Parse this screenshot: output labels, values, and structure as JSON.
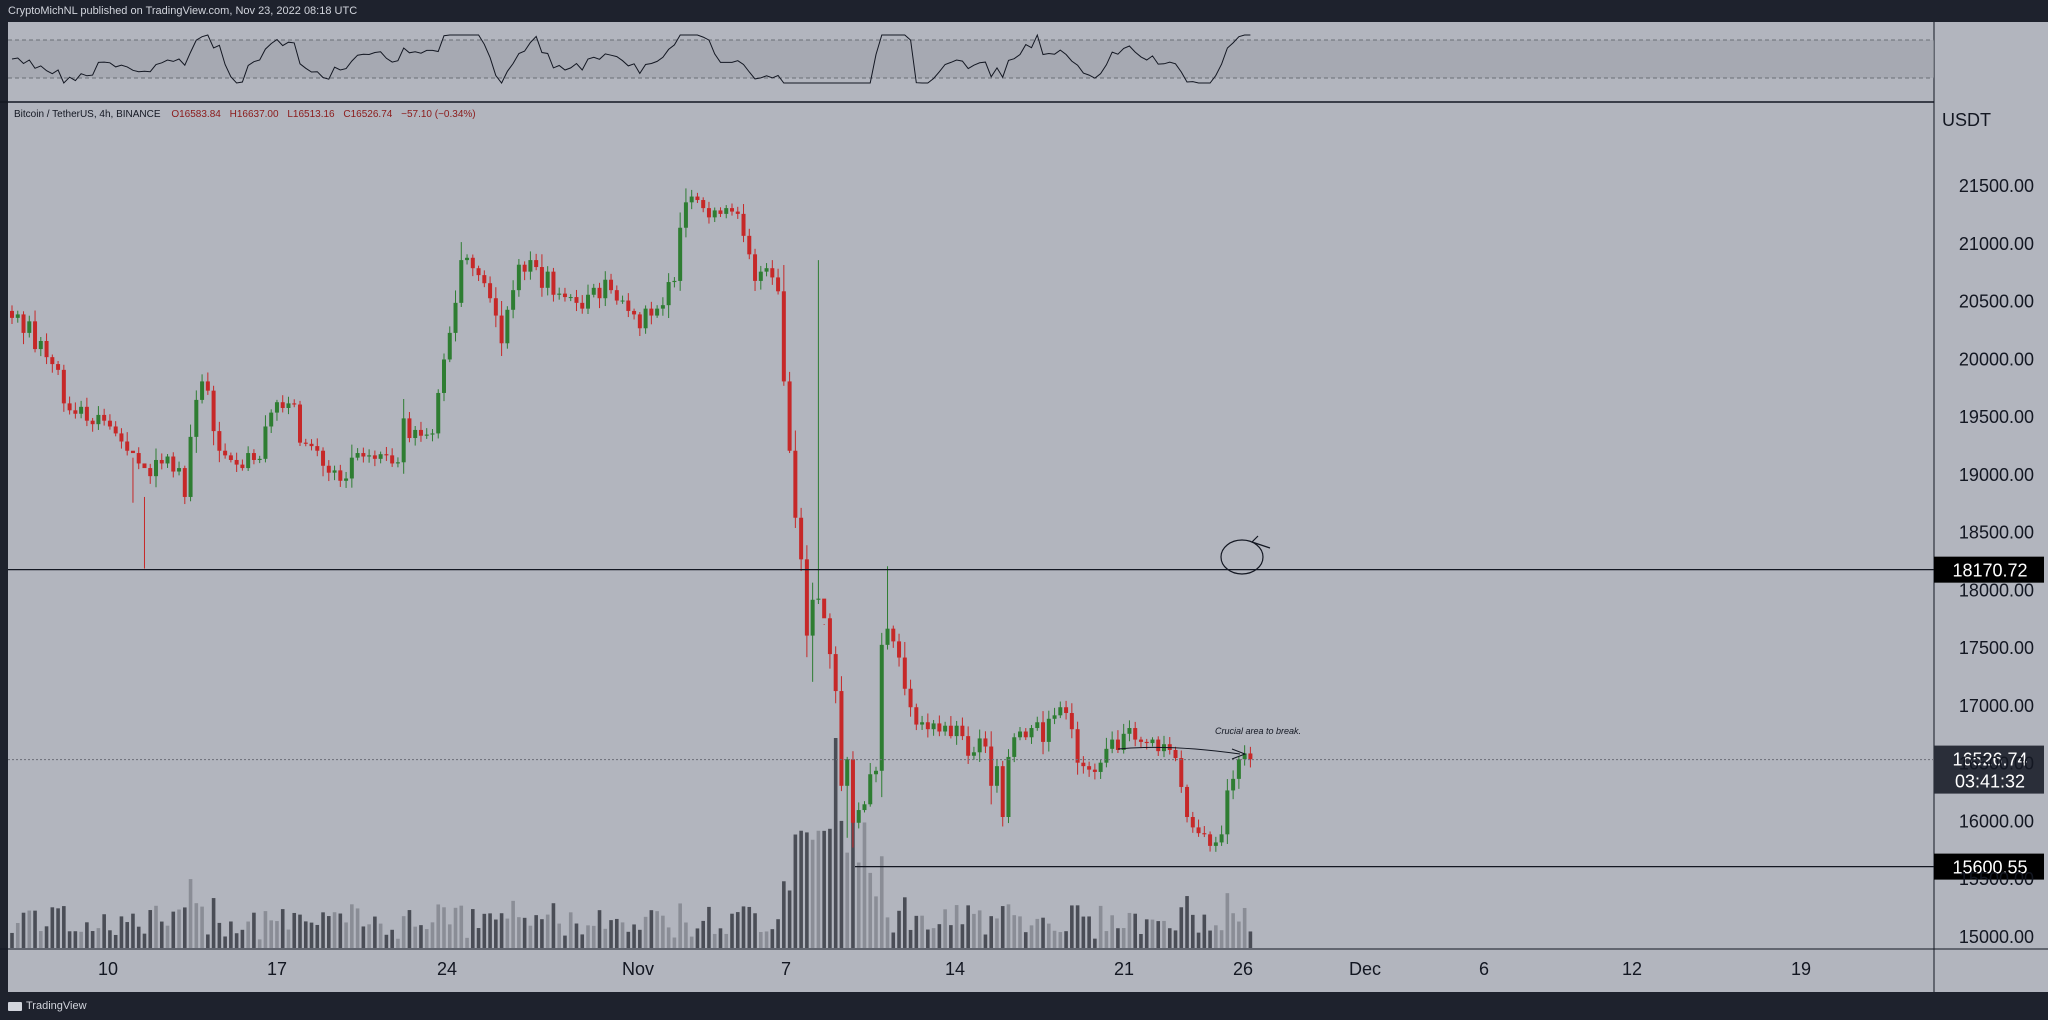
{
  "header": {
    "publish_text": "CryptoMichNL published on TradingView.com, Nov 23, 2022 08:18 UTC"
  },
  "footer": {
    "brand": "TradingView"
  },
  "colors": {
    "background": "#b2b5be",
    "frame": "#1e222d",
    "up_candle": "#2e7d32",
    "down_candle": "#c62828",
    "line_level": "#131722",
    "label_bg": "#000000",
    "label_text": "#ffffff",
    "current_price_bg": "#2a2e39"
  },
  "chart_data": {
    "type": "candlestick",
    "symbol_line": {
      "name": "Bitcoin / TetherUS, 4h, BINANCE",
      "open": "O16583.84",
      "high": "H16637.00",
      "low": "L16513.16",
      "close": "C16526.74",
      "change": "−57.10 (−0.34%)"
    },
    "currency": "USDT",
    "y_ticks": [
      "15000.00",
      "15500.00",
      "16000.00",
      "16500.00",
      "17000.00",
      "17500.00",
      "18000.00",
      "18500.00",
      "19000.00",
      "19500.00",
      "20000.00",
      "20500.00",
      "21000.00",
      "21500.00"
    ],
    "x_ticks": [
      "10",
      "17",
      "24",
      "Nov",
      "7",
      "14",
      "21",
      "26",
      "Dec",
      "6",
      "12",
      "19"
    ],
    "ylim": [
      14900,
      21850
    ],
    "levels": [
      {
        "price": 18170.72,
        "label": "18170.72"
      },
      {
        "price": 15600.55,
        "label": "15600.55"
      }
    ],
    "current_price": {
      "value": 16526.74,
      "label": "16526.74",
      "countdown": "03:41:32"
    },
    "annotation": "Crucial area to break.",
    "indicator": "RSI",
    "closes_note": "closes per 4h candle, Nov 4 2022 to Nov 23 2022",
    "closes": [
      20350,
      20380,
      20220,
      20320,
      20080,
      20150,
      20010,
      19950,
      19900,
      19610,
      19550,
      19520,
      19580,
      19460,
      19430,
      19510,
      19460,
      19410,
      19350,
      19280,
      19200,
      19180,
      19090,
      19050,
      18980,
      19120,
      19090,
      19150,
      19020,
      19050,
      18800,
      19320,
      19640,
      19800,
      19720,
      19370,
      19200,
      19160,
      19120,
      19080,
      19050,
      19180,
      19120,
      19130,
      19410,
      19530,
      19620,
      19570,
      19610,
      19600,
      19270,
      19260,
      19240,
      19200,
      19070,
      19010,
      19030,
      18940,
      18960,
      19140,
      19180,
      19150,
      19160,
      19130,
      19170,
      19160,
      19090,
      19100,
      19480,
      19310,
      19380,
      19330,
      19340,
      19350,
      19700,
      19990,
      20220,
      20480,
      20850,
      20870,
      20780,
      20720,
      20650,
      20520,
      20370,
      20130,
      20420,
      20590,
      20810,
      20750,
      20850,
      20790,
      20610,
      20750,
      20550,
      20560,
      20530,
      20530,
      20480,
      20430,
      20550,
      20610,
      20520,
      20680,
      20590,
      20500,
      20500,
      20410,
      20380,
      20260,
      20430,
      20370,
      20430,
      20460,
      20660,
      20670,
      21130,
      21350,
      21400,
      21370,
      21300,
      21220,
      21280,
      21250,
      21300,
      21270,
      21250,
      21060,
      20900,
      20670,
      20750,
      20780,
      20700,
      20580,
      19800,
      19200,
      18620,
      18260,
      17600,
      17910,
      17920,
      17750,
      17440,
      17120,
      16300,
      16530,
      15980,
      16090,
      16140,
      16400,
      16430,
      17520,
      17660,
      17550,
      17410,
      17140,
      16980,
      16830,
      16850,
      16790,
      16840,
      16770,
      16820,
      16730,
      16820,
      16730,
      16560,
      16590,
      16710,
      16640,
      16300,
      16470,
      16030,
      16550,
      16720,
      16770,
      16720,
      16800,
      16850,
      16680,
      16880,
      16910,
      16980,
      16930,
      16790,
      16500,
      16470,
      16440,
      16420,
      16500,
      16620,
      16700,
      16610,
      16750,
      16800,
      16700,
      16680,
      16670,
      16700,
      16600,
      16660,
      16610,
      16540,
      16290,
      16030,
      15940,
      15890,
      15880,
      15780,
      15810,
      15880,
      16260,
      16360,
      16530,
      16580,
      16530
    ],
    "highs_override": {
      "23": 18800,
      "21": 18750,
      "140": 20850,
      "152": 18200,
      "141": 17700
    },
    "lows_override": {
      "23": 18180,
      "139": 17200,
      "145": 15850
    }
  }
}
